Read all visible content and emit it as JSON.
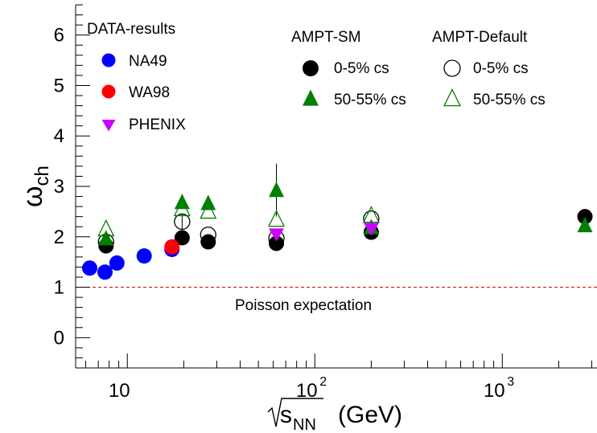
{
  "chart_data": {
    "type": "scatter",
    "xscale": "log",
    "xlim": [
      5.3,
      3200
    ],
    "ylim": [
      -0.6,
      6.6
    ],
    "grid": false,
    "xlabel": {
      "radical": "s",
      "subscript": "NN",
      "unit": "(GeV)"
    },
    "ylabel": {
      "symbol": "ω",
      "subscript": "ch"
    },
    "x_ticks": [
      {
        "value": 10,
        "base": "10",
        "exp": ""
      },
      {
        "value": 100,
        "base": "10",
        "exp": "2"
      },
      {
        "value": 1000,
        "base": "10",
        "exp": "3"
      }
    ],
    "y_ticks": [
      0,
      1,
      2,
      3,
      4,
      5,
      6
    ],
    "reference_line": {
      "y": 1,
      "color": "#e00000",
      "style": "dashed",
      "label": "Poisson expectation"
    },
    "legend": {
      "data_title": "DATA-results",
      "ampt_sm_title": "AMPT-SM",
      "ampt_default_title": "AMPT-Default"
    },
    "series": [
      {
        "name": "NA49",
        "group": "data",
        "marker": "circle",
        "color": "#0000ff",
        "filled": true,
        "points": [
          {
            "x": 6.3,
            "y": 1.38
          },
          {
            "x": 7.6,
            "y": 1.3
          },
          {
            "x": 8.8,
            "y": 1.48
          },
          {
            "x": 12.3,
            "y": 1.62
          },
          {
            "x": 17.3,
            "y": 1.75
          }
        ]
      },
      {
        "name": "WA98",
        "group": "data",
        "marker": "circle",
        "color": "#ff0000",
        "filled": true,
        "points": [
          {
            "x": 17.3,
            "y": 1.8
          }
        ]
      },
      {
        "name": "PHENIX",
        "group": "data",
        "marker": "triangle-down",
        "color": "#cc00ff",
        "filled": true,
        "points": [
          {
            "x": 62.4,
            "y": 2.06
          },
          {
            "x": 200,
            "y": 2.17
          }
        ]
      },
      {
        "name": "0-5% cs",
        "group": "sm",
        "marker": "circle",
        "color": "#000000",
        "filled": true,
        "points": [
          {
            "x": 7.7,
            "y": 1.82
          },
          {
            "x": 19.6,
            "y": 1.98
          },
          {
            "x": 27,
            "y": 1.9
          },
          {
            "x": 62.4,
            "y": 1.87
          },
          {
            "x": 200,
            "y": 2.09
          },
          {
            "x": 2760,
            "y": 2.4
          }
        ]
      },
      {
        "name": "50-55% cs",
        "group": "sm",
        "marker": "triangle-up",
        "color": "#008000",
        "filled": true,
        "points": [
          {
            "x": 7.7,
            "y": 1.96
          },
          {
            "x": 19.6,
            "y": 2.68
          },
          {
            "x": 27,
            "y": 2.66
          },
          {
            "x": 62.4,
            "y": 2.92
          },
          {
            "x": 200,
            "y": 2.18
          },
          {
            "x": 2760,
            "y": 2.22
          }
        ]
      },
      {
        "name": "0-5% cs",
        "group": "default",
        "marker": "circle",
        "color": "#000000",
        "filled": false,
        "points": [
          {
            "x": 7.7,
            "y": 1.9
          },
          {
            "x": 19.6,
            "y": 2.3
          },
          {
            "x": 27,
            "y": 2.04
          },
          {
            "x": 62.4,
            "y": 1.97
          },
          {
            "x": 200,
            "y": 2.36
          }
        ]
      },
      {
        "name": "50-55% cs",
        "group": "default",
        "marker": "triangle-up",
        "color": "#008000",
        "filled": false,
        "points": [
          {
            "x": 7.7,
            "y": 2.15
          },
          {
            "x": 19.6,
            "y": 2.55
          },
          {
            "x": 27,
            "y": 2.5
          },
          {
            "x": 62.4,
            "y": 2.34
          },
          {
            "x": 200,
            "y": 2.42
          }
        ]
      }
    ],
    "error_bars": [
      {
        "x": 62.4,
        "y_low": 2.4,
        "y_high": 3.45
      },
      {
        "x": 19.6,
        "y_low": 2.15,
        "y_high": 2.45
      }
    ]
  }
}
